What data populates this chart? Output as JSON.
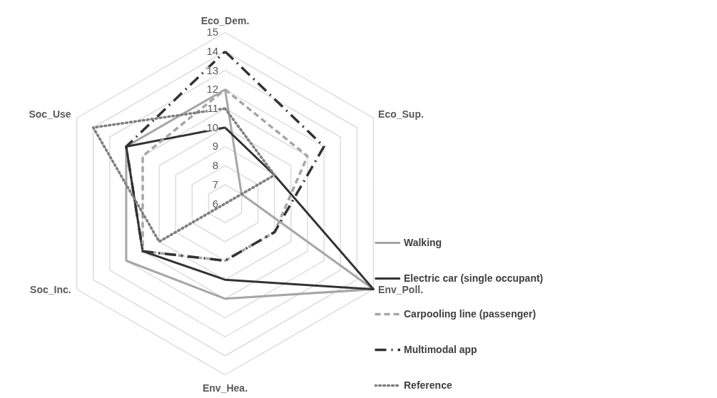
{
  "chart_data": {
    "type": "radar",
    "categories": [
      "Eco_Dem.",
      "Eco_Sup.",
      "Env_Poll.",
      "Env_Hea.",
      "Soc_Inc.",
      "Soc_Use"
    ],
    "ylim": [
      6,
      15
    ],
    "yticks": [
      6,
      7,
      8,
      9,
      10,
      11,
      12,
      13,
      14,
      15
    ],
    "grid": true,
    "legend": "right",
    "marker": "none",
    "series": [
      {
        "name": "Walking",
        "color": "#a6a6a6",
        "line_style": "solid",
        "values": [
          12,
          7,
          15,
          11,
          12,
          12
        ]
      },
      {
        "name": "Electric car (single occupant)",
        "color": "#333333",
        "line_style": "solid",
        "values": [
          10,
          9,
          15,
          10,
          11,
          12
        ]
      },
      {
        "name": "Carpooling line (passenger)",
        "color": "#a6a6a6",
        "line_style": "dashed",
        "values": [
          12,
          11,
          9,
          9,
          11,
          11
        ]
      },
      {
        "name": "Multimodal app",
        "color": "#333333",
        "line_style": "dashdot",
        "values": [
          14,
          12,
          9,
          9,
          11,
          12
        ]
      },
      {
        "name": "Reference",
        "color": "#7f7f7f",
        "line_style": "dotted",
        "values": [
          11,
          9,
          6,
          6,
          10,
          14
        ]
      }
    ]
  }
}
